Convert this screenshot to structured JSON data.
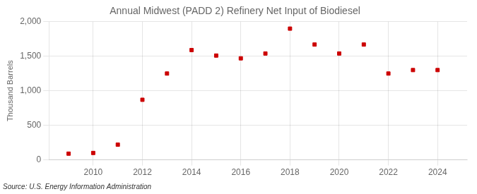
{
  "chart_data": {
    "type": "scatter",
    "title": "Annual Midwest (PADD 2) Refinery Net Input of Biodiesel",
    "ylabel": "Thousand Barrels",
    "source": "Source: U.S. Energy Information Administration",
    "x": [
      2009,
      2010,
      2011,
      2012,
      2013,
      2014,
      2015,
      2016,
      2017,
      2018,
      2019,
      2020,
      2021,
      2022,
      2023,
      2024
    ],
    "values": [
      90,
      100,
      220,
      870,
      1250,
      1590,
      1510,
      1470,
      1540,
      1900,
      1670,
      1540,
      1670,
      1250,
      1300,
      1300
    ],
    "color": "#cc0000",
    "marker": "square",
    "xlim": [
      2008.2,
      2025.2
    ],
    "xticks": [
      2010,
      2012,
      2014,
      2016,
      2018,
      2020,
      2022,
      2024
    ],
    "ylim": [
      0,
      2000
    ],
    "yticks": [
      0,
      500,
      {
        "value": 1000,
        "label": "1,000"
      },
      {
        "value": 1500,
        "label": "1,500"
      },
      {
        "value": 2000,
        "label": "2,000"
      }
    ],
    "grid": true
  }
}
